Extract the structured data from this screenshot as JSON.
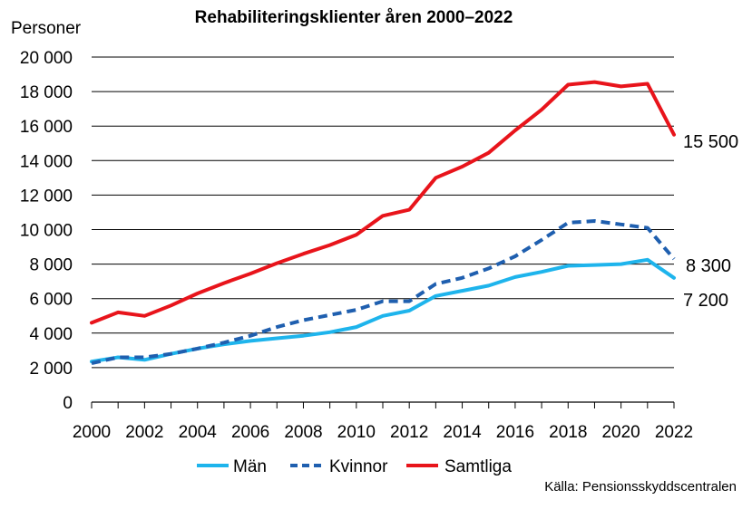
{
  "chart_data": {
    "type": "line",
    "title": "Rehabiliteringsklienter åren 2000–2022",
    "ylabel": "Personer",
    "xlabel": "",
    "ylim": [
      0,
      20000
    ],
    "yticks": [
      0,
      2000,
      4000,
      6000,
      8000,
      10000,
      12000,
      14000,
      16000,
      18000,
      20000
    ],
    "ytick_labels": [
      "0",
      "2 000",
      "4 000",
      "6 000",
      "8 000",
      "10 000",
      "12 000",
      "14 000",
      "16 000",
      "18 000",
      "20 000"
    ],
    "xlim": [
      2000,
      2022
    ],
    "xticks": [
      2000,
      2002,
      2004,
      2006,
      2008,
      2010,
      2012,
      2014,
      2016,
      2018,
      2020,
      2022
    ],
    "xtick_labels": [
      "2000",
      "2002",
      "2004",
      "2006",
      "2008",
      "2010",
      "2012",
      "2014",
      "2016",
      "2018",
      "2020",
      "2022"
    ],
    "grid": "horizontal",
    "legend_position": "bottom",
    "x": [
      2000,
      2001,
      2002,
      2003,
      2004,
      2005,
      2006,
      2007,
      2008,
      2009,
      2010,
      2011,
      2012,
      2013,
      2014,
      2015,
      2016,
      2017,
      2018,
      2019,
      2020,
      2021,
      2022
    ],
    "series": [
      {
        "name": "Män",
        "color": "#1EB4EC",
        "style": "solid",
        "values": [
          2350,
          2600,
          2450,
          2800,
          3100,
          3350,
          3550,
          3700,
          3850,
          4050,
          4350,
          5000,
          5300,
          6150,
          6450,
          6750,
          7250,
          7550,
          7900,
          7950,
          8000,
          8250,
          7200
        ],
        "end_label": "7 200"
      },
      {
        "name": "Kvinnor",
        "color": "#1F5FAF",
        "style": "dashed",
        "values": [
          2250,
          2600,
          2600,
          2800,
          3100,
          3450,
          3850,
          4350,
          4750,
          5050,
          5350,
          5850,
          5850,
          6850,
          7200,
          7750,
          8450,
          9400,
          10400,
          10500,
          10300,
          10100,
          8300
        ],
        "end_label": "8 300"
      },
      {
        "name": "Samtliga",
        "color": "#E8141B",
        "style": "solid",
        "values": [
          4600,
          5200,
          5000,
          5600,
          6300,
          6900,
          7450,
          8050,
          8600,
          9100,
          9700,
          10800,
          11150,
          13000,
          13650,
          14450,
          15750,
          16950,
          18400,
          18550,
          18300,
          18450,
          15500
        ],
        "end_label": "15 500"
      }
    ],
    "source": "Källa: Pensionsskyddscentralen"
  }
}
